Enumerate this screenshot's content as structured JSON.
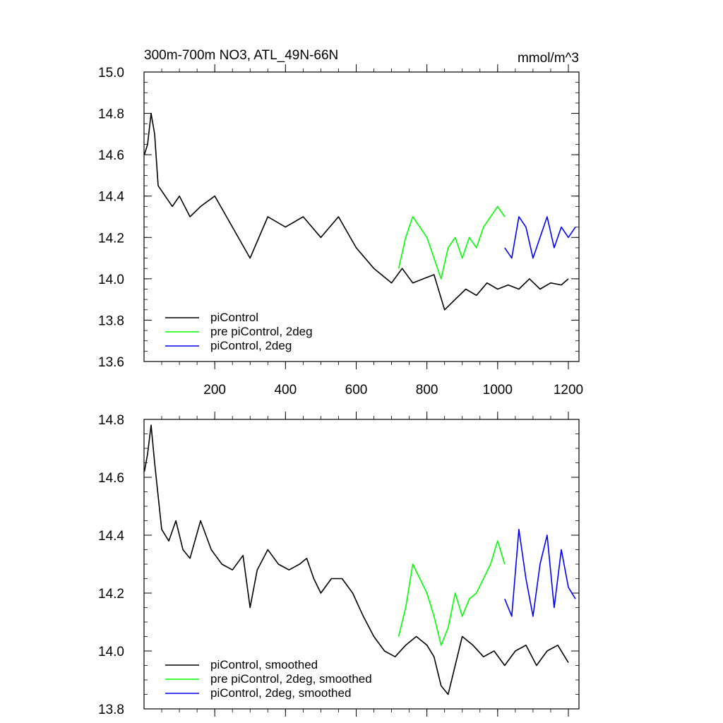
{
  "chart_data": [
    {
      "type": "line",
      "title": "300m-700m NO3, ATL_49N-66N",
      "units_label": "mmol/m^3",
      "xlim": [
        0,
        1230
      ],
      "ylim": [
        13.6,
        15.0
      ],
      "x_ticks": [
        200,
        400,
        600,
        800,
        1000,
        1200
      ],
      "y_ticks": [
        13.6,
        13.8,
        14.0,
        14.2,
        14.4,
        14.6,
        14.8,
        15.0
      ],
      "x_tick_labels": [
        "200",
        "400",
        "600",
        "800",
        "1000",
        "1200"
      ],
      "y_tick_labels": [
        "13.6",
        "13.8",
        "14.0",
        "14.2",
        "14.4",
        "14.6",
        "14.8",
        "15.0"
      ],
      "grid": false,
      "legend_position": "bottom-left",
      "series": [
        {
          "name": "piControl",
          "color": "#000000",
          "x": [
            1,
            10,
            20,
            30,
            40,
            60,
            80,
            100,
            130,
            160,
            200,
            250,
            300,
            350,
            400,
            450,
            500,
            550,
            600,
            650,
            700,
            730,
            760,
            790,
            820,
            850,
            880,
            910,
            940,
            970,
            1000,
            1030,
            1060,
            1090,
            1120,
            1150,
            1180,
            1200
          ],
          "y": [
            14.6,
            14.65,
            14.8,
            14.7,
            14.45,
            14.4,
            14.35,
            14.4,
            14.3,
            14.35,
            14.4,
            14.25,
            14.1,
            14.3,
            14.25,
            14.3,
            14.2,
            14.3,
            14.15,
            14.05,
            13.98,
            14.05,
            13.98,
            14.0,
            14.02,
            13.85,
            13.9,
            13.95,
            13.92,
            13.98,
            13.95,
            13.97,
            13.95,
            14.0,
            13.95,
            13.98,
            13.97,
            14.0
          ]
        },
        {
          "name": "pre piControl, 2deg",
          "color": "#00ff00",
          "x": [
            720,
            740,
            760,
            780,
            800,
            820,
            840,
            860,
            880,
            900,
            920,
            940,
            960,
            980,
            1000,
            1020
          ],
          "y": [
            14.05,
            14.2,
            14.3,
            14.25,
            14.2,
            14.1,
            14.0,
            14.15,
            14.2,
            14.1,
            14.2,
            14.15,
            14.25,
            14.3,
            14.35,
            14.3
          ]
        },
        {
          "name": "piControl, 2deg",
          "color": "#0000ff",
          "x": [
            1020,
            1040,
            1060,
            1080,
            1100,
            1120,
            1140,
            1160,
            1180,
            1200,
            1220
          ],
          "y": [
            14.15,
            14.1,
            14.3,
            14.25,
            14.1,
            14.2,
            14.3,
            14.15,
            14.25,
            14.2,
            14.25
          ]
        }
      ]
    },
    {
      "type": "line",
      "xlim": [
        0,
        1230
      ],
      "ylim": [
        13.8,
        14.8
      ],
      "x_ticks": [
        200,
        400,
        600,
        800,
        1000,
        1200
      ],
      "y_ticks": [
        13.8,
        14.0,
        14.2,
        14.4,
        14.6,
        14.8
      ],
      "y_tick_labels": [
        "13.8",
        "14.0",
        "14.2",
        "14.4",
        "14.6",
        "14.8"
      ],
      "grid": false,
      "legend_position": "bottom-left",
      "series": [
        {
          "name": "piControl, smoothed",
          "color": "#000000",
          "x": [
            1,
            10,
            20,
            30,
            50,
            70,
            90,
            110,
            130,
            160,
            190,
            220,
            250,
            280,
            300,
            320,
            350,
            380,
            410,
            440,
            460,
            480,
            500,
            530,
            560,
            590,
            620,
            650,
            680,
            710,
            740,
            770,
            800,
            820,
            840,
            860,
            880,
            900,
            930,
            960,
            990,
            1020,
            1050,
            1080,
            1110,
            1140,
            1170,
            1200
          ],
          "y": [
            14.62,
            14.68,
            14.78,
            14.65,
            14.42,
            14.38,
            14.45,
            14.35,
            14.32,
            14.45,
            14.35,
            14.3,
            14.28,
            14.33,
            14.15,
            14.28,
            14.35,
            14.3,
            14.28,
            14.3,
            14.32,
            14.25,
            14.2,
            14.25,
            14.25,
            14.2,
            14.12,
            14.05,
            14.0,
            13.98,
            14.02,
            14.05,
            14.02,
            13.98,
            13.88,
            13.85,
            13.95,
            14.05,
            14.02,
            13.98,
            14.0,
            13.95,
            14.0,
            14.02,
            13.95,
            14.0,
            14.02,
            13.96
          ]
        },
        {
          "name": "pre piControl, 2deg, smoothed",
          "color": "#00ff00",
          "x": [
            720,
            740,
            760,
            780,
            800,
            820,
            840,
            860,
            880,
            900,
            920,
            940,
            960,
            980,
            1000,
            1020
          ],
          "y": [
            14.05,
            14.15,
            14.3,
            14.25,
            14.2,
            14.12,
            14.02,
            14.08,
            14.2,
            14.12,
            14.18,
            14.2,
            14.25,
            14.3,
            14.38,
            14.3
          ]
        },
        {
          "name": "piControl, 2deg, smoothed",
          "color": "#0000ff",
          "x": [
            1020,
            1040,
            1060,
            1080,
            1100,
            1120,
            1140,
            1160,
            1180,
            1200,
            1220
          ],
          "y": [
            14.18,
            14.12,
            14.42,
            14.25,
            14.12,
            14.3,
            14.4,
            14.15,
            14.35,
            14.22,
            14.18
          ]
        }
      ]
    }
  ]
}
